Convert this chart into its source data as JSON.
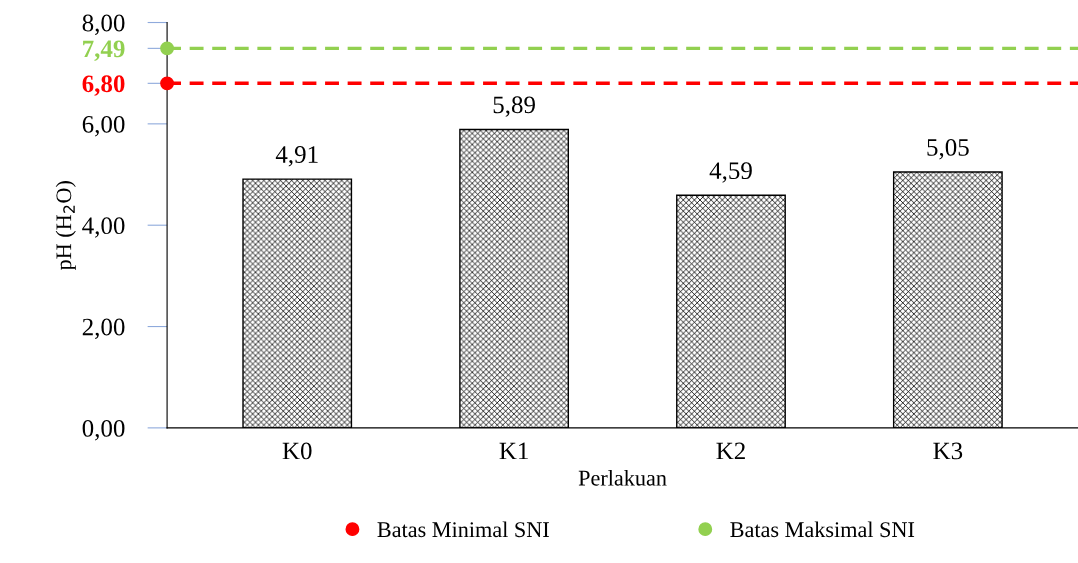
{
  "chart_data": {
    "type": "bar",
    "xlabel": "Perlakuan",
    "ylabel": "pH (H$_{2}$O)",
    "categories": [
      "K0",
      "K1",
      "K2",
      "K3"
    ],
    "values": [
      4.91,
      5.89,
      4.59,
      5.05
    ],
    "value_labels": [
      "4,91",
      "5,89",
      "4,59",
      "5,05"
    ],
    "color": "#000000",
    "ylim": [
      0,
      8
    ],
    "yticks": [
      {
        "value": 0,
        "label": "0,00"
      },
      {
        "value": 2,
        "label": "2,00"
      },
      {
        "value": 4,
        "label": "4,00"
      },
      {
        "value": 6,
        "label": "6,00"
      },
      {
        "value": 6.8,
        "label": "6,80"
      },
      {
        "value": 7.49,
        "label": "7,49"
      },
      {
        "value": 8,
        "label": "8,00"
      }
    ],
    "ref_lines": [
      {
        "axis": "y",
        "value": 6.8,
        "label": "Batas Minimal SNI",
        "color": "#ff0000",
        "line_style": "dashed"
      },
      {
        "axis": "y",
        "value": 7.49,
        "label": "Batas Maksimal SNI",
        "color": "#92d050",
        "line_style": "dashed"
      }
    ],
    "grid": false,
    "legend": "bottom"
  }
}
